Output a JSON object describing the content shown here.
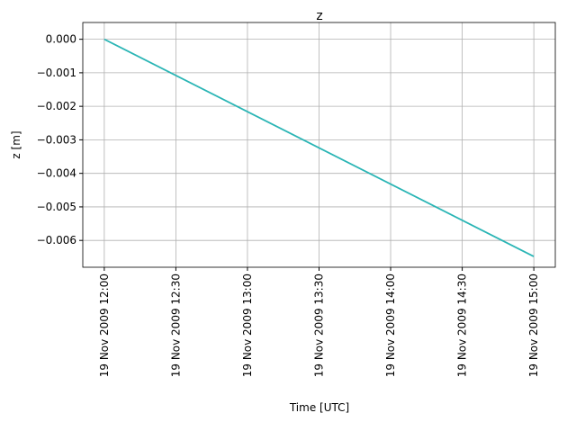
{
  "chart_data": {
    "type": "line",
    "title": "z",
    "xlabel": "Time  [UTC]",
    "ylabel": "z  [m]",
    "x": [
      "2009-11-19 12:00",
      "2009-11-19 15:00"
    ],
    "series": [
      {
        "color": "#2ab5b5",
        "values": [
          0.0,
          -0.00648
        ]
      }
    ],
    "xlim": [
      "2009-11-19 11:51",
      "2009-11-19 15:09"
    ],
    "xticks": [
      {
        "value": "2009-11-19 12:00",
        "label": "19 Nov 2009 12:00"
      },
      {
        "value": "2009-11-19 12:30",
        "label": "19 Nov 2009 12:30"
      },
      {
        "value": "2009-11-19 13:00",
        "label": "19 Nov 2009 13:00"
      },
      {
        "value": "2009-11-19 13:30",
        "label": "19 Nov 2009 13:30"
      },
      {
        "value": "2009-11-19 14:00",
        "label": "19 Nov 2009 14:00"
      },
      {
        "value": "2009-11-19 14:30",
        "label": "19 Nov 2009 14:30"
      },
      {
        "value": "2009-11-19 15:00",
        "label": "19 Nov 2009 15:00"
      }
    ],
    "ylim": [
      -0.0068,
      0.0005
    ],
    "yticks": [
      {
        "value": 0,
        "label": "0.000"
      },
      {
        "value": -0.001,
        "label": "−0.001"
      },
      {
        "value": -0.002,
        "label": "−0.002"
      },
      {
        "value": -0.003,
        "label": "−0.003"
      },
      {
        "value": -0.004,
        "label": "−0.004"
      },
      {
        "value": -0.005,
        "label": "−0.005"
      },
      {
        "value": -0.006,
        "label": "−0.006"
      }
    ],
    "grid": true
  }
}
